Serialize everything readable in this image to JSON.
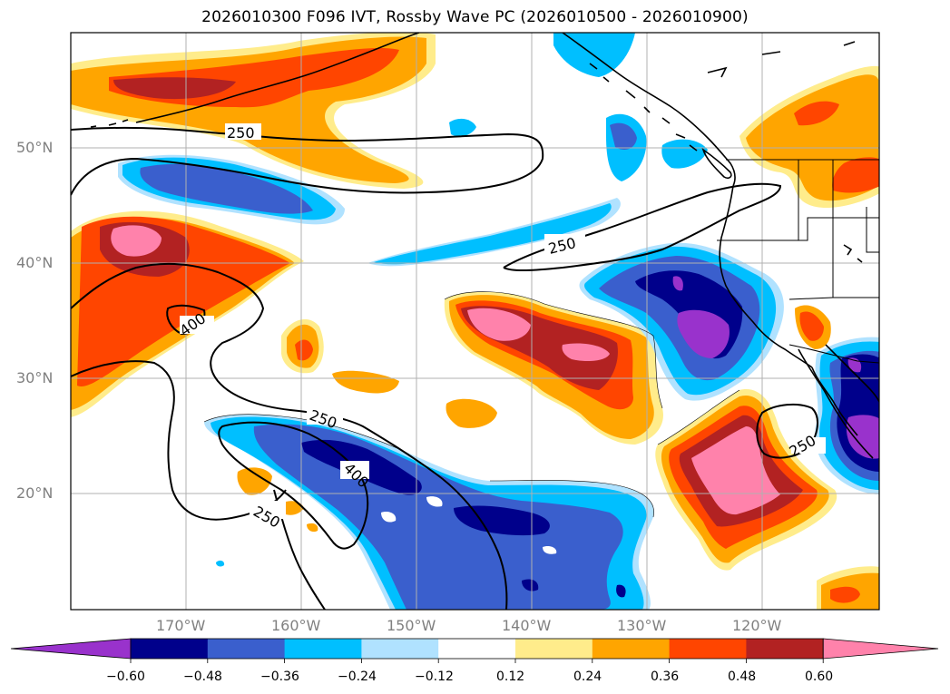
{
  "title": "2026010300 F096 IVT, Rossby Wave PC (2026010500 - 2026010900)",
  "lat_labels": [
    "50°N",
    "40°N",
    "30°N",
    "20°N"
  ],
  "lon_labels": [
    "170°W",
    "160°W",
    "150°W",
    "140°W",
    "130°W",
    "120°W"
  ],
  "contour_labels": [
    "250",
    "250",
    "400",
    "250",
    "400",
    "250",
    "250"
  ],
  "colorbar": {
    "ticks": [
      "−0.60",
      "−0.48",
      "−0.36",
      "−0.24",
      "−0.12",
      "0.12",
      "0.24",
      "0.36",
      "0.48",
      "0.60"
    ],
    "colors": [
      "#9932cc",
      "#00008b",
      "#3a5fcd",
      "#00bfff",
      "#b0e2ff",
      "#ffffff",
      "#ffec8b",
      "#ffa500",
      "#ff4500",
      "#b22222",
      "#ff82ab"
    ]
  }
}
